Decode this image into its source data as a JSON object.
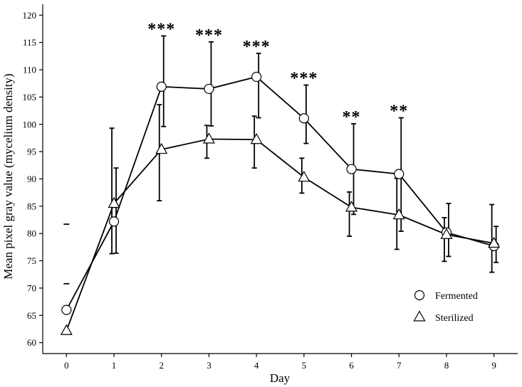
{
  "chart_data": {
    "type": "line",
    "title": "",
    "xlabel": "Day",
    "ylabel": "Mean pixel gray value (mycelium density)",
    "x": [
      0,
      1,
      2,
      3,
      4,
      5,
      6,
      7,
      8,
      9
    ],
    "xlim": [
      -0.5,
      9.5
    ],
    "ylim": [
      58,
      122
    ],
    "xticks": [
      "0",
      "1",
      "2",
      "3",
      "4",
      "5",
      "6",
      "7",
      "8",
      "9"
    ],
    "yticks": [
      "60",
      "65",
      "70",
      "75",
      "80",
      "85",
      "90",
      "95",
      "100",
      "105",
      "110",
      "115",
      "120"
    ],
    "grid": false,
    "legend_position": "bottom-right",
    "series": [
      {
        "name": "Fermented",
        "marker": "circle",
        "values": [
          66.0,
          82.2,
          106.9,
          106.5,
          108.7,
          101.1,
          91.8,
          90.9,
          80.2,
          77.7
        ],
        "err_low": [
          null,
          76.4,
          99.6,
          99.7,
          101.2,
          96.5,
          83.5,
          80.4,
          75.8,
          74.7
        ],
        "err_high": [
          null,
          92.0,
          116.2,
          115.1,
          113.0,
          107.2,
          100.1,
          101.2,
          85.5,
          81.3
        ]
      },
      {
        "name": "Sterilized",
        "marker": "triangle",
        "values": [
          62.2,
          85.5,
          95.4,
          97.3,
          97.2,
          90.3,
          84.8,
          83.4,
          79.8,
          78.2
        ],
        "err_low": [
          null,
          76.3,
          86.0,
          93.8,
          92.0,
          87.4,
          79.5,
          77.1,
          74.9,
          72.9
        ],
        "err_high": [
          null,
          99.3,
          103.6,
          99.8,
          101.5,
          93.8,
          87.6,
          90.1,
          82.9,
          85.3
        ]
      }
    ],
    "stray_marks": [
      {
        "x": 0,
        "y": 81.7
      },
      {
        "x": 0,
        "y": 70.8
      }
    ],
    "annotations": [
      {
        "x": 2,
        "y": 116.2,
        "text": "***"
      },
      {
        "x": 3,
        "y": 115.1,
        "text": "***"
      },
      {
        "x": 4,
        "y": 113.0,
        "text": "***"
      },
      {
        "x": 5,
        "y": 107.2,
        "text": "***"
      },
      {
        "x": 6,
        "y": 100.1,
        "text": "**"
      },
      {
        "x": 7,
        "y": 101.2,
        "text": "**"
      }
    ]
  }
}
